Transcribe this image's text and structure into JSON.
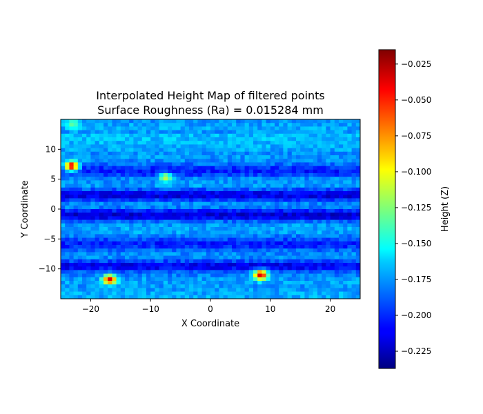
{
  "chart_data": {
    "type": "heatmap",
    "title_line1": "Interpolated Height Map of filtered points",
    "title_line2": "Surface Roughness (Ra) = 0.015284 mm",
    "xlabel": "X Coordinate",
    "ylabel": "Y Coordinate",
    "xlim": [
      -25,
      25
    ],
    "ylim": [
      -15,
      15
    ],
    "x_ticks": [
      -20,
      -10,
      0,
      10,
      20
    ],
    "y_ticks": [
      -10,
      -5,
      0,
      5,
      10
    ],
    "x_tick_labels": [
      "−20",
      "−10",
      "0",
      "10",
      "20"
    ],
    "y_tick_labels": [
      "−10",
      "−5",
      "0",
      "5",
      "10"
    ],
    "colormap": "jet",
    "colorbar": {
      "label": "Height (Z)",
      "range": [
        -0.237,
        -0.015
      ],
      "ticks": [
        -0.225,
        -0.2,
        -0.175,
        -0.15,
        -0.125,
        -0.1,
        -0.075,
        -0.05,
        -0.025
      ],
      "tick_labels": [
        "−0.225",
        "−0.200",
        "−0.175",
        "−0.150",
        "−0.125",
        "−0.100",
        "−0.075",
        "−0.050",
        "−0.025"
      ]
    },
    "base_level": -0.175,
    "bands": [
      {
        "y": 11.5,
        "z": -0.165
      },
      {
        "y": 6.3,
        "z": -0.205
      },
      {
        "y": 2.3,
        "z": -0.215
      },
      {
        "y": -1.0,
        "z": -0.222
      },
      {
        "y": -5.8,
        "z": -0.205
      },
      {
        "y": -9.5,
        "z": -0.215
      }
    ],
    "hotspots": [
      {
        "x": -23.2,
        "y": 7.2,
        "z": -0.03
      },
      {
        "x": -16.8,
        "y": -11.8,
        "z": -0.035
      },
      {
        "x": 8.4,
        "y": -11.0,
        "z": -0.03
      },
      {
        "x": -7.5,
        "y": 5.3,
        "z": -0.11
      },
      {
        "x": -23.0,
        "y": 14.3,
        "z": -0.13
      }
    ]
  }
}
